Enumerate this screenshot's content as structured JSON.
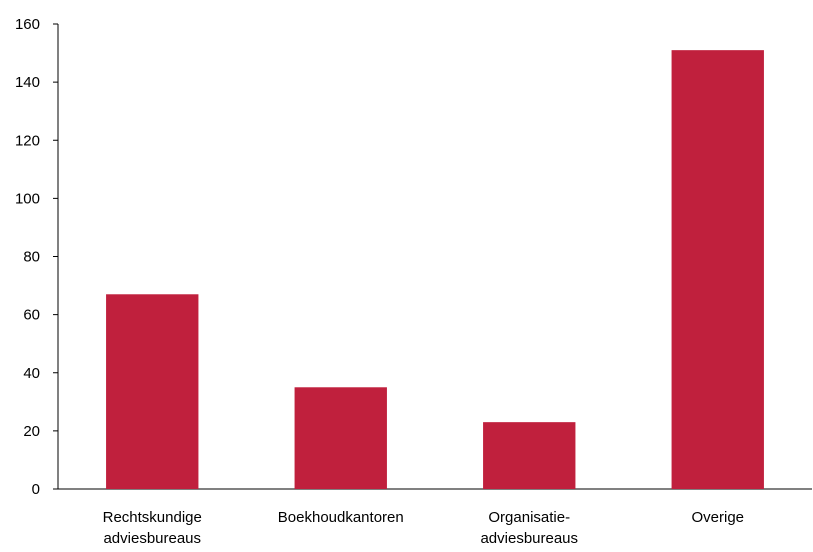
{
  "chart_data": {
    "type": "bar",
    "categories": [
      [
        "Rechtskundige",
        "adviesbureaus"
      ],
      [
        "Boekhoudkantoren"
      ],
      [
        "Organisatie-",
        "adviesbureaus"
      ],
      [
        "Overige"
      ]
    ],
    "values": [
      67,
      35,
      23,
      151
    ],
    "ylim": [
      0,
      160
    ],
    "yticks": [
      0,
      20,
      40,
      60,
      80,
      100,
      120,
      140,
      160
    ],
    "title": "",
    "xlabel": "",
    "ylabel": "",
    "grid": false,
    "bar_color": "#c0203d"
  }
}
